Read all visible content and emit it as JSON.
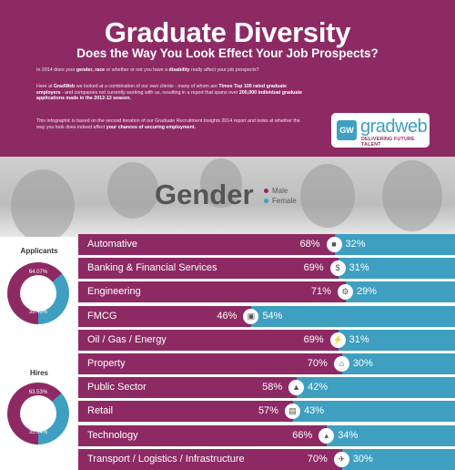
{
  "header": {
    "title": "Graduate Diversity",
    "subtitle": "Does the Way You Look Effect Your Job Prospects?",
    "p1_a": "In 2014 does your ",
    "p1_b": "gender, race",
    "p1_c": " or whether or not you have a ",
    "p1_d": "disability",
    "p1_e": " really affect your job prospects?",
    "p2_a": "Here at ",
    "p2_b": "GradWeb",
    "p2_c": " we looked at a combination of our own clients - many of whom are ",
    "p2_d": "Times Top 100 rated graduate employers",
    "p2_e": " - and companies not currently working with us, resulting in a report that spans over ",
    "p2_f": "200,000 individual graduate applications made in the 2012-13 season.",
    "p3_a": "This infographic is based on the second iteration of our Graduate Recruitment Insights 2014 report and looks at whether the way you look does indeed affect ",
    "p3_b": "your chances of securing employment."
  },
  "logo": {
    "mark": "GW",
    "word": "gradweb",
    "tagline": "DELIVERING FUTURE TALENT"
  },
  "gender": {
    "heading": "Gender",
    "male_label": "Male",
    "female_label": "Female"
  },
  "colors": {
    "male": "#8d2a64",
    "female": "#3e9fc0"
  },
  "sidebar": {
    "applicants_label": "Applicants",
    "applicants_male": "64.07%",
    "applicants_female": "35.45%",
    "applicants_male_value": 64.07,
    "hires_label": "Hires",
    "hires_male": "63.53%",
    "hires_female": "35.84%",
    "hires_male_value": 63.53
  },
  "rows": [
    {
      "label": "Automative",
      "male": "68%",
      "female": "32%",
      "male_value": 68,
      "icon": "car-icon"
    },
    {
      "label": "Banking & Financial Services",
      "male": "69%",
      "female": "31%",
      "male_value": 69,
      "icon": "money-bag-icon"
    },
    {
      "label": "Engineering",
      "male": "71%",
      "female": "29%",
      "male_value": 71,
      "icon": "gear-icon"
    },
    {
      "label": "FMCG",
      "male": "46%",
      "female": "54%",
      "male_value": 46,
      "icon": "cart-icon"
    },
    {
      "label": "Oil / Gas / Energy",
      "male": "69%",
      "female": "31%",
      "male_value": 69,
      "icon": "lightning-icon"
    },
    {
      "label": "Property",
      "male": "70%",
      "female": "30%",
      "male_value": 70,
      "icon": "house-icon"
    },
    {
      "label": "Public Sector",
      "male": "58%",
      "female": "42%",
      "male_value": 58,
      "icon": "bell-icon"
    },
    {
      "label": "Retail",
      "male": "57%",
      "female": "43%",
      "male_value": 57,
      "icon": "shopping-bag-icon"
    },
    {
      "label": "Technology",
      "male": "66%",
      "female": "34%",
      "male_value": 66,
      "icon": "rocket-icon"
    },
    {
      "label": "Transport / Logistics / Infrastructure",
      "male": "70%",
      "female": "30%",
      "male_value": 70,
      "icon": "plane-icon"
    }
  ]
}
